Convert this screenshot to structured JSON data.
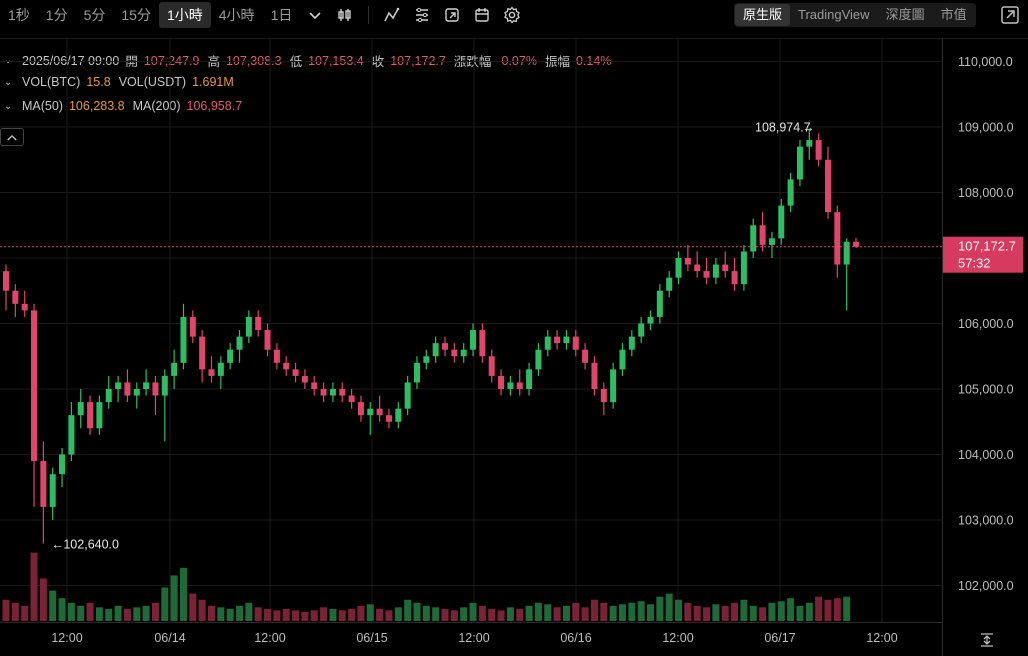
{
  "toolbar": {
    "timeframes": [
      "1秒",
      "1分",
      "5分",
      "15分",
      "1小時",
      "4小時",
      "1日"
    ],
    "active_timeframe": "1小時",
    "view_options": [
      "原生版",
      "TradingView",
      "深度圖",
      "市值"
    ],
    "active_view": "原生版",
    "icons": [
      "chevron-down-icon",
      "candlestick-icon",
      "line-draw-icon",
      "indicator-icon",
      "replay-icon",
      "calendar-icon",
      "gear-icon",
      "fullscreen-icon"
    ]
  },
  "legend": {
    "datetime": "2025/06/17 09:00",
    "open_label": "開",
    "open": "107,247.9",
    "high_label": "高",
    "high": "107,308.3",
    "low_label": "低",
    "low": "107,153.4",
    "close_label": "收",
    "close": "107,172.7",
    "change_label": "漲跌幅",
    "change": "-0.07%",
    "amplitude_label": "振幅",
    "amplitude": "0.14%",
    "vol_btc_label": "VOL(BTC)",
    "vol_btc": "15.8",
    "vol_usdt_label": "VOL(USDT)",
    "vol_usdt": "1.691M",
    "ma50_label": "MA(50)",
    "ma50": "106,283.8",
    "ma200_label": "MA(200)",
    "ma200": "106,958.7"
  },
  "price_tag": {
    "price": "107,172.7",
    "countdown": "57:32"
  },
  "annotations": {
    "high": "108,974.7",
    "low": "102,640.0"
  },
  "colors": {
    "up": "#2ebd65",
    "down": "#e0466c",
    "vol_up": "#1e6a38",
    "vol_down": "#7a2337",
    "grid": "#1a1a1a",
    "price_line": "#e0466c"
  },
  "chart_data": {
    "type": "candlestick",
    "y_axis": {
      "ticks": [
        "102,000.0",
        "103,000.0",
        "104,000.0",
        "105,000.0",
        "106,000.0",
        "107,000.0",
        "108,000.0",
        "109,000.0",
        "110,000.0"
      ],
      "tick_values": [
        102000,
        103000,
        104000,
        105000,
        106000,
        107000,
        108000,
        109000,
        110000
      ]
    },
    "x_axis": {
      "ticks": [
        "12:00",
        "06/14",
        "12:00",
        "06/15",
        "12:00",
        "06/16",
        "12:00",
        "06/17",
        "12:00"
      ]
    },
    "last_price": 107172.7,
    "series": [
      {
        "name": "",
        "candles": [
          [
            106800,
            106900,
            106200,
            106500
          ],
          [
            106500,
            106600,
            106100,
            106300
          ],
          [
            106300,
            106500,
            106100,
            106200
          ],
          [
            106200,
            106300,
            103200,
            103900
          ],
          [
            103900,
            104200,
            102640,
            103200
          ],
          [
            103200,
            103800,
            103000,
            103700
          ],
          [
            103700,
            104100,
            103500,
            104000
          ],
          [
            104000,
            104800,
            103900,
            104600
          ],
          [
            104600,
            105000,
            104400,
            104800
          ],
          [
            104800,
            104900,
            104300,
            104400
          ],
          [
            104400,
            104900,
            104300,
            104800
          ],
          [
            104800,
            105200,
            104700,
            105000
          ],
          [
            105000,
            105200,
            104800,
            105100
          ],
          [
            105100,
            105300,
            104800,
            104900
          ],
          [
            104900,
            105100,
            104700,
            105000
          ],
          [
            105000,
            105300,
            104900,
            105100
          ],
          [
            105100,
            105200,
            104600,
            104900
          ],
          [
            104900,
            105300,
            104200,
            105200
          ],
          [
            105200,
            105600,
            105000,
            105400
          ],
          [
            105400,
            106300,
            105300,
            106100
          ],
          [
            106100,
            106200,
            105700,
            105800
          ],
          [
            105800,
            105900,
            105100,
            105300
          ],
          [
            105300,
            105500,
            105100,
            105200
          ],
          [
            105200,
            105500,
            105000,
            105400
          ],
          [
            105400,
            105700,
            105300,
            105600
          ],
          [
            105600,
            105900,
            105400,
            105800
          ],
          [
            105800,
            106200,
            105700,
            106100
          ],
          [
            106100,
            106200,
            105800,
            105900
          ],
          [
            105900,
            106000,
            105500,
            105600
          ],
          [
            105600,
            105700,
            105300,
            105400
          ],
          [
            105400,
            105500,
            105200,
            105300
          ],
          [
            105300,
            105400,
            105100,
            105200
          ],
          [
            105200,
            105300,
            105000,
            105100
          ],
          [
            105100,
            105200,
            104900,
            105000
          ],
          [
            105000,
            105100,
            104800,
            104900
          ],
          [
            104900,
            105100,
            104800,
            105000
          ],
          [
            105000,
            105100,
            104800,
            104900
          ],
          [
            104900,
            105000,
            104700,
            104800
          ],
          [
            104800,
            104900,
            104500,
            104600
          ],
          [
            104600,
            104800,
            104300,
            104700
          ],
          [
            104700,
            104900,
            104500,
            104600
          ],
          [
            104600,
            104700,
            104400,
            104500
          ],
          [
            104500,
            104800,
            104400,
            104700
          ],
          [
            104700,
            105200,
            104600,
            105100
          ],
          [
            105100,
            105500,
            105000,
            105400
          ],
          [
            105400,
            105600,
            105300,
            105500
          ],
          [
            105500,
            105800,
            105400,
            105700
          ],
          [
            105700,
            105800,
            105500,
            105600
          ],
          [
            105600,
            105700,
            105400,
            105500
          ],
          [
            105500,
            105700,
            105400,
            105600
          ],
          [
            105600,
            106000,
            105500,
            105900
          ],
          [
            105900,
            106000,
            105400,
            105500
          ],
          [
            105500,
            105600,
            105100,
            105200
          ],
          [
            105200,
            105300,
            104900,
            105000
          ],
          [
            105000,
            105200,
            104900,
            105100
          ],
          [
            105100,
            105300,
            104900,
            105000
          ],
          [
            105000,
            105400,
            104900,
            105300
          ],
          [
            105300,
            105700,
            105200,
            105600
          ],
          [
            105600,
            105900,
            105500,
            105800
          ],
          [
            105800,
            105900,
            105600,
            105700
          ],
          [
            105700,
            105900,
            105600,
            105800
          ],
          [
            105800,
            105900,
            105500,
            105600
          ],
          [
            105600,
            105700,
            105300,
            105400
          ],
          [
            105400,
            105500,
            104900,
            105000
          ],
          [
            105000,
            105100,
            104600,
            104800
          ],
          [
            104800,
            105400,
            104700,
            105300
          ],
          [
            105300,
            105700,
            105200,
            105600
          ],
          [
            105600,
            105900,
            105500,
            105800
          ],
          [
            105800,
            106100,
            105700,
            106000
          ],
          [
            106000,
            106200,
            105900,
            106100
          ],
          [
            106100,
            106600,
            106000,
            106500
          ],
          [
            106500,
            106800,
            106400,
            106700
          ],
          [
            106700,
            107100,
            106600,
            107000
          ],
          [
            107000,
            107200,
            106800,
            106900
          ],
          [
            106900,
            107100,
            106700,
            106800
          ],
          [
            106800,
            107000,
            106600,
            106700
          ],
          [
            106700,
            107000,
            106600,
            106900
          ],
          [
            106900,
            107100,
            106700,
            106800
          ],
          [
            106800,
            107000,
            106500,
            106600
          ],
          [
            106600,
            107200,
            106500,
            107100
          ],
          [
            107100,
            107600,
            107000,
            107500
          ],
          [
            107500,
            107700,
            107100,
            107200
          ],
          [
            107200,
            107400,
            107000,
            107300
          ],
          [
            107300,
            107900,
            107200,
            107800
          ],
          [
            107800,
            108300,
            107700,
            108200
          ],
          [
            108200,
            108800,
            108100,
            108700
          ],
          [
            108700,
            108974.7,
            108500,
            108800
          ],
          [
            108800,
            108900,
            108400,
            108500
          ],
          [
            108500,
            108700,
            107600,
            107700
          ],
          [
            107700,
            107800,
            106700,
            106900
          ],
          [
            106900,
            107300,
            106200,
            107248
          ],
          [
            107248,
            107308,
            107153,
            107173
          ]
        ]
      }
    ],
    "volume": [
      14,
      12,
      10,
      45,
      28,
      20,
      15,
      12,
      10,
      12,
      9,
      8,
      10,
      8,
      9,
      10,
      12,
      22,
      30,
      35,
      18,
      14,
      10,
      9,
      8,
      10,
      12,
      9,
      8,
      7,
      8,
      7,
      6,
      7,
      9,
      8,
      7,
      8,
      10,
      11,
      8,
      7,
      9,
      14,
      12,
      10,
      9,
      8,
      7,
      9,
      12,
      10,
      8,
      7,
      9,
      8,
      10,
      12,
      11,
      9,
      10,
      12,
      9,
      14,
      12,
      10,
      11,
      12,
      13,
      11,
      16,
      18,
      14,
      12,
      10,
      9,
      11,
      10,
      12,
      14,
      10,
      9,
      12,
      13,
      15,
      10,
      12,
      16,
      14,
      15,
      16
    ]
  }
}
